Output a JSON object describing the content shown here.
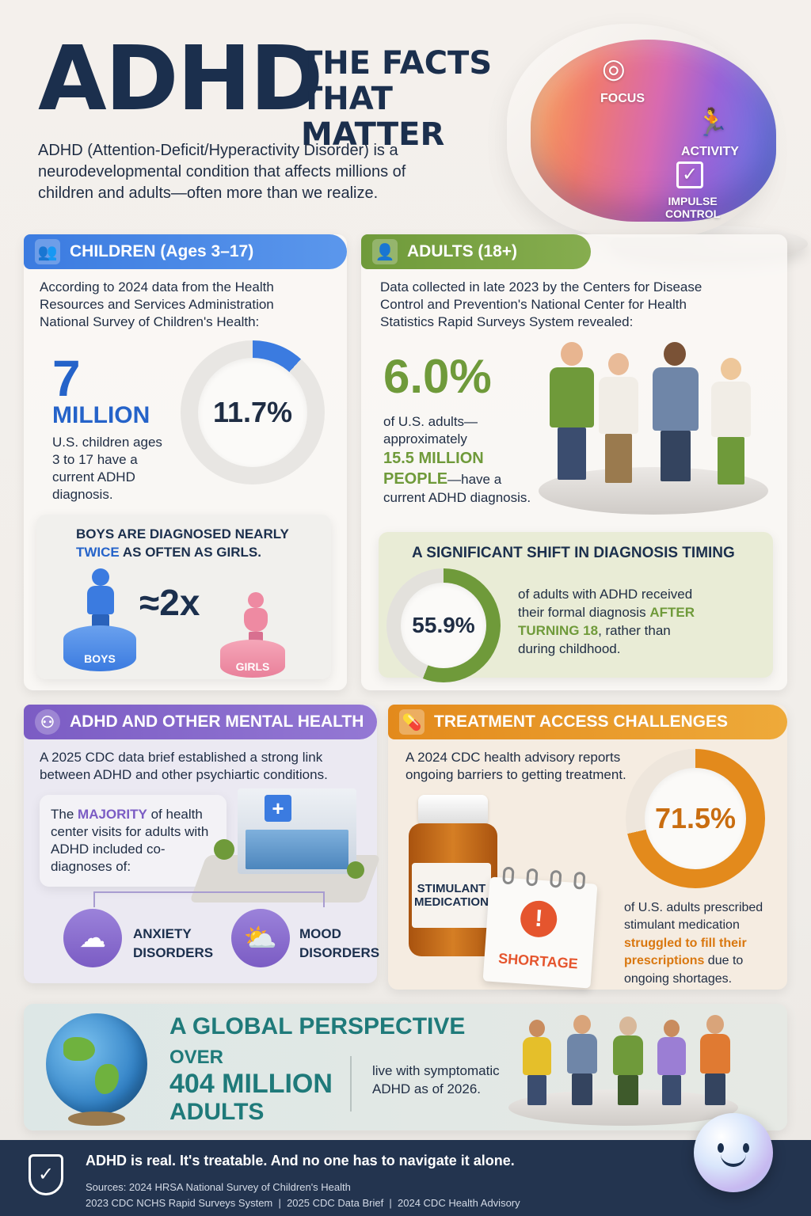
{
  "header": {
    "title": "ADHD",
    "subtitle_line1": "THE FACTS",
    "subtitle_line2": "THAT MATTER",
    "intro": "ADHD (Attention-Deficit/Hyperactivity Disorder) is a neurodevelopmental condition that affects millions of children and adults—often more than we realize.",
    "brain_labels": {
      "focus": "FOCUS",
      "activity": "ACTIVITY",
      "impulse_line1": "IMPULSE",
      "impulse_line2": "CONTROL"
    }
  },
  "children": {
    "heading": "CHILDREN (Ages 3–17)",
    "source": "According to 2024 data from the Health Resources and Services Administration National Survey of Children's Health:",
    "big_number": "7",
    "big_unit": "MILLION",
    "desc": "U.S. children ages 3 to 17 have a current ADHD diagnosis.",
    "percent": "11.7%",
    "percent_value": 11.7,
    "boys_line1": "BOYS ARE DIAGNOSED NEARLY",
    "boys_highlight": "TWICE",
    "boys_line2_rest": " AS OFTEN AS GIRLS.",
    "ratio": "≈2x",
    "boys_label": "BOYS",
    "girls_label": "GIRLS"
  },
  "adults": {
    "heading": "ADULTS (18+)",
    "source": "Data collected in late 2023 by the Centers for Disease Control and Prevention's National Center for Health Statistics Rapid Surveys System revealed:",
    "big_number": "6.0%",
    "desc_line1": "of U.S. adults—",
    "desc_line2": "approximately",
    "highlight1": "15.5 MILLION",
    "highlight2": "PEOPLE",
    "desc_after": "—have a",
    "desc_end": "current ADHD diagnosis.",
    "shift_title": "A SIGNIFICANT SHIFT IN DIAGNOSIS TIMING",
    "shift_percent": "55.9%",
    "shift_value": 55.9,
    "shift_text_line1": "of adults with ADHD received",
    "shift_text_line2": "their formal diagnosis",
    "shift_highlight1": "AFTER",
    "shift_highlight2": "TURNING 18",
    "shift_text_rest": ", rather than",
    "shift_text_end": "during childhood."
  },
  "mental": {
    "heading": "ADHD AND OTHER MENTAL HEALTH",
    "intro": "A 2025 CDC data brief established a strong link between ADHD and other psychiartic conditions.",
    "box_before": "The ",
    "box_highlight": "MAJORITY",
    "box_after": " of health center visits for adults with ADHD included co-diagnoses of:",
    "anxiety_line1": "ANXIETY",
    "anxiety_line2": "DISORDERS",
    "mood_line1": "MOOD",
    "mood_line2": "DISORDERS"
  },
  "treatment": {
    "heading": "TREATMENT ACCESS CHALLENGES",
    "intro": "A 2024 CDC health advisory reports ongoing barriers to getting treatment.",
    "bottle_line1": "STIMULANT",
    "bottle_line2": "MEDICATION",
    "shortage": "SHORTAGE",
    "percent": "71.5%",
    "percent_value": 71.5,
    "desc_before": "of U.S. adults prescribed stimulant medication ",
    "desc_highlight": "struggled to fill their prescriptions",
    "desc_after": " due to ongoing shortages."
  },
  "global": {
    "heading": "A GLOBAL PERSPECTIVE",
    "over": "OVER",
    "number": "404 MILLION",
    "unit": "ADULTS",
    "desc": "live with symptomatic ADHD as of 2026."
  },
  "footer": {
    "tagline": "ADHD is real. It's treatable. And no one has to navigate it alone.",
    "sources_line1": "Sources: 2024 HRSA National Survey of Children's Health",
    "sources_line2": "2023 CDC NCHS Rapid Surveys System  |  2025 CDC Data Brief  |  2024 CDC Health Advisory"
  },
  "colors": {
    "navy": "#1b2f4d",
    "blue": "#3b7be0",
    "green": "#6f9a3a",
    "purple": "#7b5cc4",
    "orange": "#e38a1c"
  }
}
